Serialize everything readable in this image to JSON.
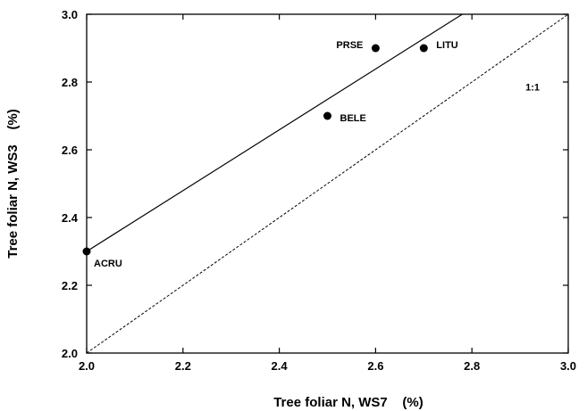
{
  "chart_data": {
    "type": "scatter",
    "title": "",
    "xlabel": "Tree foliar N, WS7    (%)",
    "ylabel": "Tree foliar N, WS3    (%)",
    "xlim": [
      2.0,
      3.0
    ],
    "ylim": [
      2.0,
      3.0
    ],
    "xticks": [
      "2.0",
      "2.2",
      "2.4",
      "2.6",
      "2.8",
      "3.0"
    ],
    "yticks": [
      "2.0",
      "2.2",
      "2.4",
      "2.6",
      "2.8",
      "3.0"
    ],
    "grid": false,
    "legend": "none",
    "points": [
      {
        "label": "ACRU",
        "x": 2.0,
        "y": 2.3
      },
      {
        "label": "BELE",
        "x": 2.5,
        "y": 2.7
      },
      {
        "label": "PRSE",
        "x": 2.6,
        "y": 2.9
      },
      {
        "label": "LITU",
        "x": 2.7,
        "y": 2.9
      }
    ],
    "regression_line": {
      "x1": 2.0,
      "y1": 2.3,
      "x2": 2.78,
      "y2": 3.0
    },
    "reference_line": {
      "label": "1:1",
      "x1": 2.0,
      "y1": 2.0,
      "x2": 3.0,
      "y2": 3.0
    }
  }
}
